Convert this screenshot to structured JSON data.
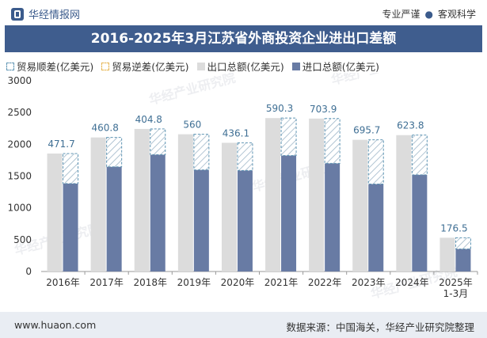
{
  "header": {
    "brand": "华经情报网",
    "tag1": "专业严谨",
    "tag_sep": "●",
    "tag2": "客观科学"
  },
  "title": "2016-2025年3月江苏省外商投资企业进出口差额",
  "legend": [
    {
      "label": "贸易顺差(亿美元)",
      "kind": "hatch",
      "color": "#5f95b4"
    },
    {
      "label": "贸易逆差(亿美元)",
      "kind": "hatch",
      "color": "#e6b450"
    },
    {
      "label": "出口总额(亿美元)",
      "kind": "solid",
      "color": "#dcdcdc"
    },
    {
      "label": "进口总额(亿美元)",
      "kind": "solid",
      "color": "#687ba4"
    }
  ],
  "footer": {
    "left": "www.huaon.com",
    "right": "数据来源：中国海关，华经产业研究院整理"
  },
  "watermark": "华经产业研究院",
  "chart_data": {
    "type": "bar",
    "categories": [
      "2016年",
      "2017年",
      "2018年",
      "2019年",
      "2020年",
      "2021年",
      "2022年",
      "2023年",
      "2024年",
      "2025年\n1-3月"
    ],
    "series": [
      {
        "name": "出口总额(亿美元)",
        "values": [
          1855,
          2108,
          2242,
          2158,
          2024,
          2413,
          2405,
          2071,
          2145,
          531
        ]
      },
      {
        "name": "进口总额(亿美元)",
        "values": [
          1383,
          1647,
          1837,
          1598,
          1588,
          1823,
          1701,
          1375,
          1521,
          354
        ]
      },
      {
        "name": "贸易顺差(亿美元)",
        "values": [
          471.7,
          460.8,
          404.8,
          560,
          436.1,
          590.3,
          703.9,
          695.7,
          623.8,
          176.5
        ]
      }
    ],
    "ylim": [
      0,
      3000
    ],
    "yticks": [
      0,
      500,
      1000,
      1500,
      2000,
      2500,
      3000
    ],
    "colors": {
      "export": "#dcdcdc",
      "import": "#687ba4",
      "surplus": "#5f95b4",
      "label": "#3f6f94"
    }
  }
}
